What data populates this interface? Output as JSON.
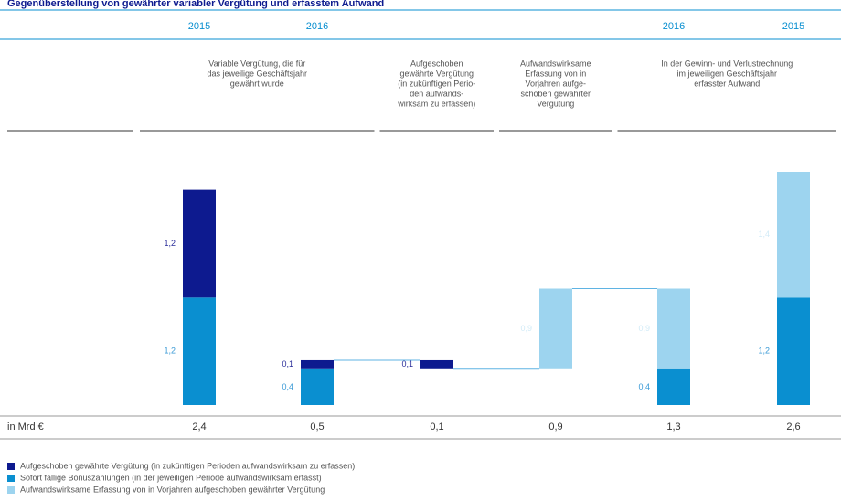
{
  "chart_data": {
    "type": "waterfall",
    "title": "Gegenüberstellung von gewährter variabler Vergütung und erfasstem Aufwand",
    "years": [
      "2015",
      "2016",
      null,
      null,
      "2016",
      "2015"
    ],
    "groups": [
      {
        "span": [
          0,
          1
        ],
        "lines": [
          "Variable Vergütung, die für",
          "das jeweilige Geschäftsjahr",
          "gewährt wurde"
        ]
      },
      {
        "span": [
          2,
          2
        ],
        "lines": [
          "Aufgeschoben",
          "gewährte Vergütung",
          "(in zukünftigen Perio-",
          "den aufwands-",
          "wirksam zu erfassen)"
        ]
      },
      {
        "span": [
          3,
          3
        ],
        "lines": [
          "Aufwandswirksame",
          "Erfassung von in",
          "Vorjahren aufge-",
          "schoben gewährter",
          "Vergütung"
        ]
      },
      {
        "span": [
          4,
          5
        ],
        "lines": [
          "In der Gewinn- und Verlustrechnung",
          "im jeweiligen Geschäftsjahr",
          "erfasster Aufwand"
        ]
      }
    ],
    "series": [
      {
        "name": "Aufgeschoben gewährte Vergütung (in zukünftigen Perioden aufwandswirksam zu erfassen)",
        "color": "#0d1a8f",
        "values": [
          1.2,
          0.1,
          0.1,
          null,
          null,
          null
        ],
        "value_labels": [
          "1,2",
          "0,1",
          "0,1",
          null,
          null,
          null
        ]
      },
      {
        "name": "Sofort fällige Bonuszahlungen (in der jeweiligen Periode aufwandswirksam erfasst)",
        "color": "#0a8fd0",
        "values": [
          1.2,
          0.4,
          null,
          null,
          0.4,
          1.2
        ],
        "value_labels": [
          "1,2",
          "0,4",
          null,
          null,
          "0,4",
          "1,2"
        ]
      },
      {
        "name": "Aufwandswirksame Erfassung von in Vorjahren aufgeschoben gewährter Vergütung",
        "color": "#9dd4ef",
        "values": [
          null,
          null,
          null,
          0.9,
          0.9,
          1.4
        ],
        "value_labels": [
          null,
          null,
          null,
          "0,9",
          "0,9",
          "1,4"
        ]
      }
    ],
    "unit_label": "in Mrd €",
    "totals": [
      2.4,
      0.5,
      0.1,
      0.9,
      1.3,
      2.6
    ],
    "total_labels": [
      "2,4",
      "0,5",
      "0,1",
      "0,9",
      "1,3",
      "2,6"
    ],
    "ylim": [
      0,
      2.6
    ]
  }
}
